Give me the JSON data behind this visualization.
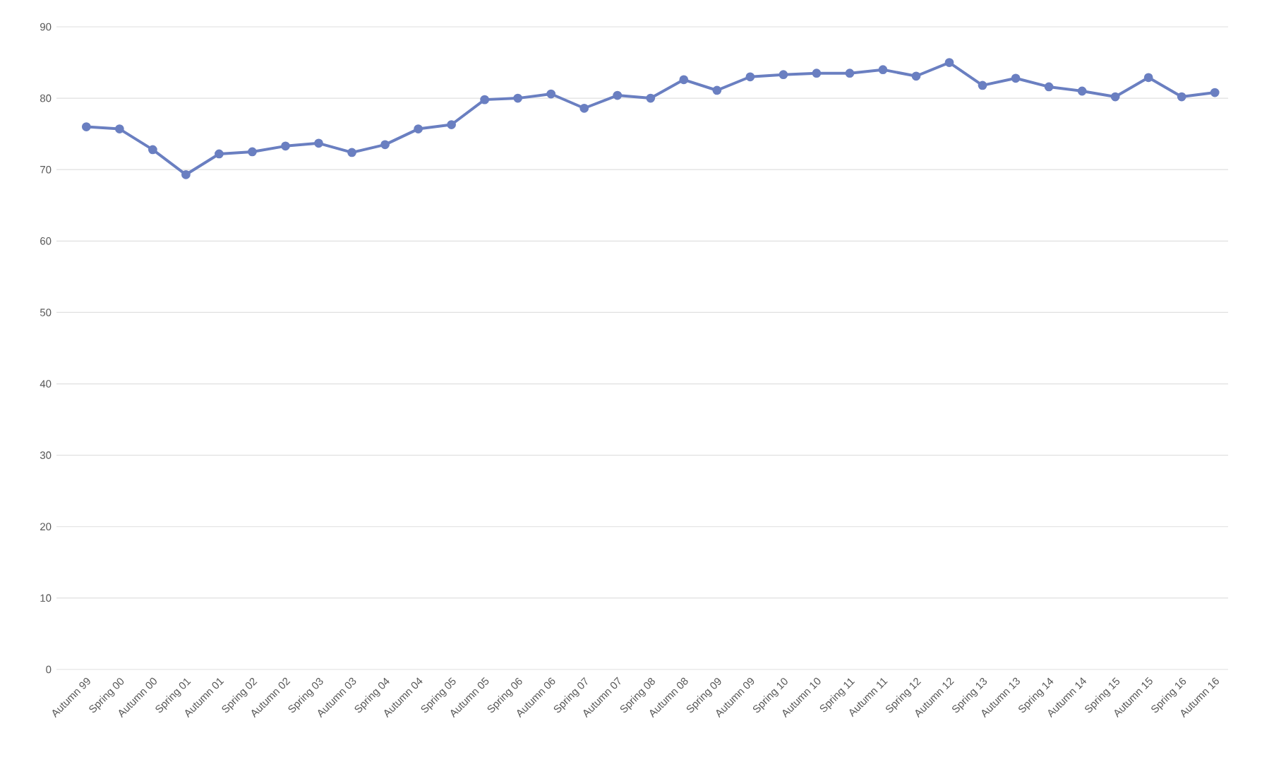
{
  "chart_data": {
    "type": "line",
    "categories": [
      "Autumn 99",
      "Spring 00",
      "Autumn 00",
      "Spring 01",
      "Autumn 01",
      "Spring 02",
      "Autumn 02",
      "Spring 03",
      "Autumn 03",
      "Spring 04",
      "Autumn 04",
      "Spring 05",
      "Autumn 05",
      "Spring 06",
      "Autumn 06",
      "Spring 07",
      "Autumn 07",
      "Spring 08",
      "Autumn 08",
      "Spring 09",
      "Autumn 09",
      "Spring 10",
      "Autumn 10",
      "Spring 11",
      "Autumn 11",
      "Spring 12",
      "Autumn 12",
      "Spring 13",
      "Autumn 13",
      "Spring 14",
      "Autumn 14",
      "Spring 15",
      "Autumn 15",
      "Spring 16",
      "Autumn 16"
    ],
    "series": [
      {
        "color": "#6a7fc1",
        "values": [
          76,
          75.7,
          72.8,
          69.3,
          72.2,
          72.5,
          73.3,
          73.7,
          72.4,
          73.5,
          75.7,
          76.3,
          79.8,
          80,
          80.6,
          78.6,
          80.4,
          80,
          82.6,
          81.1,
          83,
          83.3,
          83.5,
          83.5,
          84,
          83.1,
          85,
          81.8,
          82.8,
          81.6,
          81,
          80.2,
          82.9,
          80.2,
          80.8
        ]
      }
    ],
    "ylim": [
      0,
      90
    ],
    "yticks": [
      0,
      10,
      20,
      30,
      40,
      50,
      60,
      70,
      80,
      90
    ],
    "grid": "y",
    "marker": "circle",
    "line_style": "solid"
  }
}
